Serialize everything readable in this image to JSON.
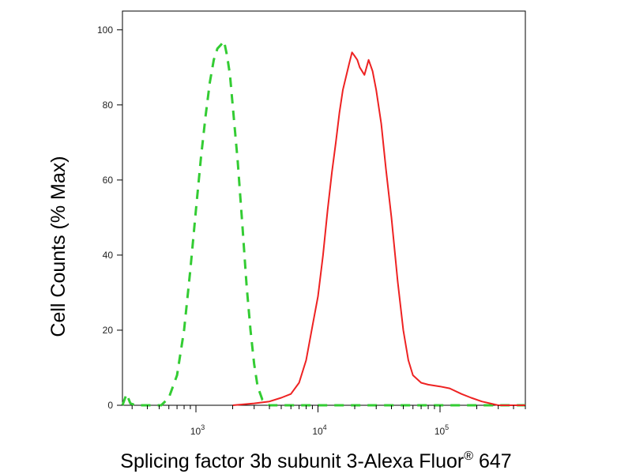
{
  "chart_data": {
    "type": "line",
    "title": "",
    "xlabel": "Splicing factor 3b subunit 3-Alexa Fluor",
    "xlabel_superscript": "®",
    "xlabel_suffix": " 647",
    "ylabel": "Cell Counts (% Max)",
    "x_scale": "log",
    "xlim": [
      250,
      500000
    ],
    "ylim": [
      0,
      105
    ],
    "y_ticks": [
      0,
      20,
      40,
      60,
      80,
      100
    ],
    "y_tick_labels": [
      "0",
      "20",
      "40",
      "60",
      "80",
      "100"
    ],
    "x_major_ticks": [
      1000,
      10000,
      100000
    ],
    "x_tick_labels": [
      {
        "base": "10",
        "exp": "3"
      },
      {
        "base": "10",
        "exp": "4"
      },
      {
        "base": "10",
        "exp": "5"
      }
    ],
    "grid": false,
    "legend": "none",
    "series": [
      {
        "color": "#33cc33",
        "style": "dashed",
        "points": [
          [
            250,
            0
          ],
          [
            270,
            3
          ],
          [
            290,
            0.5
          ],
          [
            320,
            0
          ],
          [
            400,
            0
          ],
          [
            520,
            0
          ],
          [
            600,
            2
          ],
          [
            700,
            8
          ],
          [
            800,
            20
          ],
          [
            900,
            36
          ],
          [
            1000,
            52
          ],
          [
            1100,
            66
          ],
          [
            1200,
            77
          ],
          [
            1300,
            86
          ],
          [
            1400,
            92
          ],
          [
            1500,
            95
          ],
          [
            1600,
            96
          ],
          [
            1700,
            97
          ],
          [
            1800,
            93
          ],
          [
            1900,
            88
          ],
          [
            2000,
            80
          ],
          [
            2200,
            65
          ],
          [
            2400,
            48
          ],
          [
            2600,
            32
          ],
          [
            2800,
            20
          ],
          [
            3000,
            11
          ],
          [
            3200,
            5
          ],
          [
            3500,
            1.5
          ],
          [
            4000,
            0
          ],
          [
            8000,
            0
          ],
          [
            20000,
            0
          ],
          [
            60000,
            0
          ],
          [
            200000,
            0
          ],
          [
            500000,
            0
          ]
        ]
      },
      {
        "color": "#ee2222",
        "style": "solid",
        "points": [
          [
            2000,
            0
          ],
          [
            3000,
            0.5
          ],
          [
            4000,
            1
          ],
          [
            5000,
            2
          ],
          [
            6000,
            3
          ],
          [
            7000,
            6
          ],
          [
            8000,
            12
          ],
          [
            9000,
            21
          ],
          [
            10000,
            29
          ],
          [
            11000,
            40
          ],
          [
            12000,
            52
          ],
          [
            13000,
            62
          ],
          [
            14000,
            70
          ],
          [
            15000,
            78
          ],
          [
            16000,
            84
          ],
          [
            18000,
            91
          ],
          [
            19000,
            94
          ],
          [
            20000,
            93
          ],
          [
            21000,
            92
          ],
          [
            22000,
            90
          ],
          [
            24000,
            88
          ],
          [
            26000,
            92
          ],
          [
            28000,
            89
          ],
          [
            30000,
            84
          ],
          [
            33000,
            75
          ],
          [
            36000,
            63
          ],
          [
            40000,
            50
          ],
          [
            45000,
            33
          ],
          [
            50000,
            20
          ],
          [
            55000,
            12
          ],
          [
            60000,
            8
          ],
          [
            70000,
            6
          ],
          [
            80000,
            5.5
          ],
          [
            100000,
            5
          ],
          [
            120000,
            4.5
          ],
          [
            150000,
            3
          ],
          [
            180000,
            2
          ],
          [
            220000,
            1
          ],
          [
            300000,
            0
          ],
          [
            500000,
            0
          ]
        ]
      }
    ]
  }
}
